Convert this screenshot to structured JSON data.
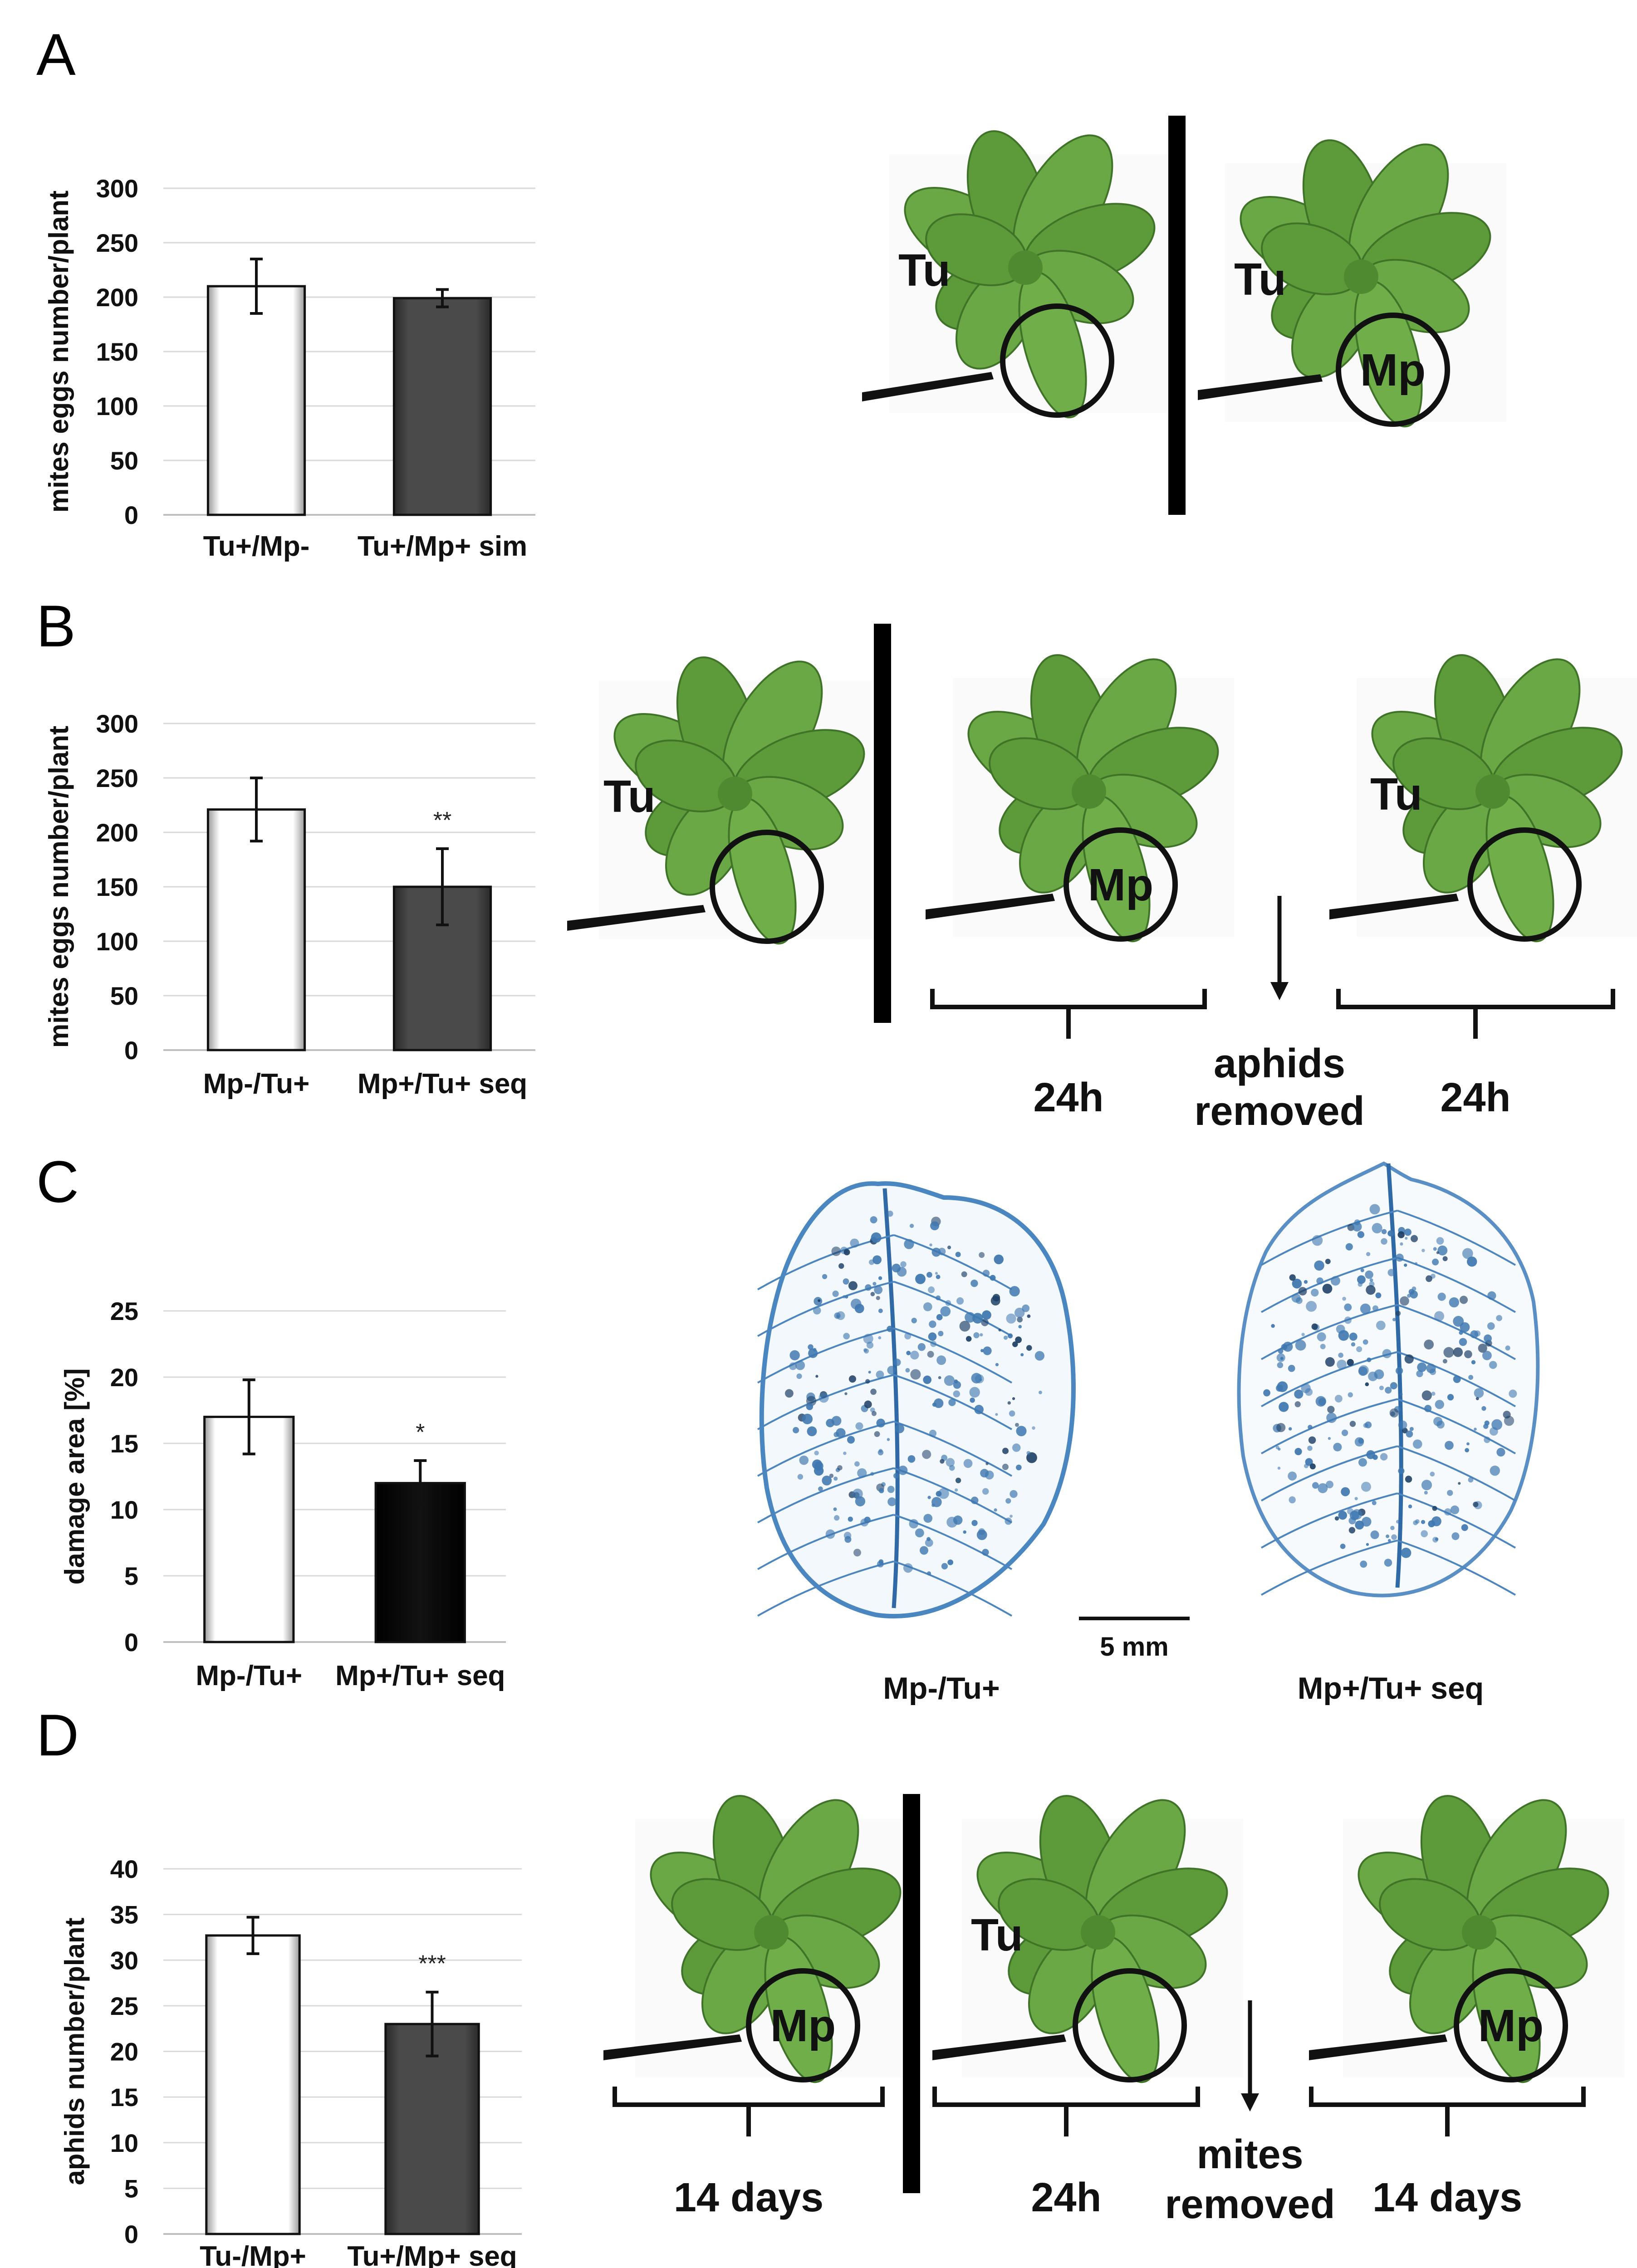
{
  "panels": {
    "A": {
      "letter": "A",
      "plant_labels": [
        "Tu",
        "Tu",
        "Mp"
      ]
    },
    "B": {
      "letter": "B",
      "plant_labels": [
        "Tu",
        "Mp",
        "Tu"
      ],
      "timeline": [
        "24h",
        "aphids",
        "removed",
        "24h"
      ]
    },
    "C": {
      "letter": "C",
      "scale_bar": "5 mm",
      "leaf_captions": [
        "Mp-/Tu+",
        "Mp+/Tu+ seq"
      ]
    },
    "D": {
      "letter": "D",
      "plant_labels": [
        "Mp",
        "Tu",
        "Mp"
      ],
      "timeline": [
        "14 days",
        "24h",
        "mites",
        "removed",
        "14 days"
      ]
    }
  },
  "colors": {
    "plant_green": "#5d9a3a",
    "plant_dark": "#3f7327",
    "bar_dark": "#474747",
    "bar_black": "#0b0b0b",
    "leaf_blue": "#3f78b0"
  },
  "chart_data": [
    {
      "type": "bar",
      "ylabel": "mites eggs number/plant",
      "categories": [
        "Tu+/Mp-",
        "Tu+/Mp+ sim"
      ],
      "values": [
        210,
        199
      ],
      "errors": [
        25,
        8
      ],
      "ylim": [
        0,
        300
      ],
      "yticks": [
        "0",
        "50",
        "100",
        "150",
        "200",
        "250",
        "300"
      ],
      "significance": [
        "",
        ""
      ],
      "bar_styles": [
        "white",
        "dark"
      ]
    },
    {
      "type": "bar",
      "ylabel": "mites eggs number/plant",
      "categories": [
        "Mp-/Tu+",
        "Mp+/Tu+ seq"
      ],
      "values": [
        221,
        150
      ],
      "errors": [
        29,
        35
      ],
      "ylim": [
        0,
        300
      ],
      "yticks": [
        "0",
        "50",
        "100",
        "150",
        "200",
        "250",
        "300"
      ],
      "significance": [
        "",
        "**"
      ],
      "bar_styles": [
        "white",
        "dark"
      ]
    },
    {
      "type": "bar",
      "ylabel": "damage area [%]",
      "categories": [
        "Mp-/Tu+",
        "Mp+/Tu+ seq"
      ],
      "values": [
        17,
        12
      ],
      "errors": [
        2.8,
        1.7
      ],
      "ylim": [
        0,
        25
      ],
      "yticks": [
        "0",
        "5",
        "10",
        "15",
        "20",
        "25"
      ],
      "significance": [
        "",
        "*"
      ],
      "bar_styles": [
        "white",
        "black"
      ]
    },
    {
      "type": "bar",
      "ylabel": "aphids number/plant",
      "categories": [
        "Tu-/Mp+",
        "Tu+/Mp+ seq"
      ],
      "values": [
        32.7,
        23
      ],
      "errors": [
        2,
        3.5
      ],
      "ylim": [
        0,
        40
      ],
      "yticks": [
        "0",
        "5",
        "10",
        "15",
        "20",
        "25",
        "30",
        "35",
        "40"
      ],
      "significance": [
        "",
        "***"
      ],
      "bar_styles": [
        "white",
        "dark"
      ]
    }
  ]
}
